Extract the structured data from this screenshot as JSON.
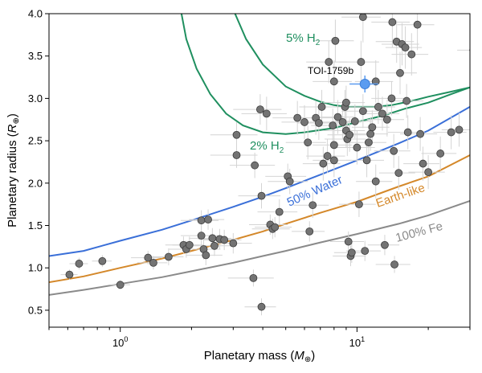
{
  "chart_data": {
    "type": "scatter",
    "xlabel_main": "Planetary mass (",
    "xlabel_sym": "M",
    "xlabel_sub": "⊕",
    "xlabel_close": ")",
    "ylabel_main": "Planetary radius (",
    "ylabel_sym": "R",
    "ylabel_sub": "⊕",
    "ylabel_close": ")",
    "x_scale": "log",
    "xlim": [
      0.5,
      30
    ],
    "ylim": [
      0.3,
      4.0
    ],
    "x_ticks": [
      {
        "value": 1,
        "base": "10",
        "exp": "0"
      },
      {
        "value": 10,
        "base": "10",
        "exp": "1"
      }
    ],
    "y_ticks": [
      {
        "value": 0.5,
        "label": "0.5"
      },
      {
        "value": 1.0,
        "label": "1.0"
      },
      {
        "value": 1.5,
        "label": "1.5"
      },
      {
        "value": 2.0,
        "label": "2.0"
      },
      {
        "value": 2.5,
        "label": "2.5"
      },
      {
        "value": 3.0,
        "label": "3.0"
      },
      {
        "value": 3.5,
        "label": "3.5"
      },
      {
        "value": 4.0,
        "label": "4.0"
      }
    ],
    "grid": false,
    "colors": {
      "planet": "#737373",
      "planet_edge": "#3c3c3c",
      "errorbar": "#d4d4d4",
      "target": "#5b9cf0",
      "h2": "#1f8f5f",
      "water": "#3a6fd8",
      "earth": "#d4882a",
      "iron": "#8a8a8a"
    },
    "models": [
      {
        "name": "5% H2",
        "label_main": "5% H",
        "label_sub": "2",
        "color": "#1f8f5f",
        "points": [
          [
            3.0,
            4.05
          ],
          [
            3.4,
            3.7
          ],
          [
            4.0,
            3.4
          ],
          [
            5.0,
            3.14
          ],
          [
            6.0,
            3.03
          ],
          [
            7.0,
            2.96
          ],
          [
            8.0,
            2.92
          ],
          [
            9.0,
            2.9
          ],
          [
            10.0,
            2.9
          ],
          [
            12.0,
            2.9
          ],
          [
            14.0,
            2.92
          ],
          [
            17.0,
            2.97
          ],
          [
            20.0,
            3.02
          ],
          [
            25.0,
            3.08
          ],
          [
            30.0,
            3.13
          ]
        ]
      },
      {
        "name": "2% H2",
        "label_main": "2% H",
        "label_sub": "2",
        "color": "#1f8f5f",
        "points": [
          [
            1.8,
            4.05
          ],
          [
            1.9,
            3.7
          ],
          [
            2.1,
            3.35
          ],
          [
            2.4,
            3.05
          ],
          [
            2.8,
            2.82
          ],
          [
            3.3,
            2.68
          ],
          [
            4.0,
            2.6
          ],
          [
            5.0,
            2.58
          ],
          [
            6.0,
            2.6
          ],
          [
            8.0,
            2.65
          ],
          [
            10.0,
            2.72
          ],
          [
            13.0,
            2.8
          ],
          [
            16.0,
            2.88
          ],
          [
            20.0,
            2.95
          ],
          [
            25.0,
            3.05
          ],
          [
            30.0,
            3.13
          ]
        ]
      },
      {
        "name": "50% Water",
        "label": "50% Water",
        "color": "#3a6fd8",
        "points": [
          [
            0.5,
            1.14
          ],
          [
            0.7,
            1.2
          ],
          [
            1.0,
            1.32
          ],
          [
            1.5,
            1.45
          ],
          [
            2.0,
            1.56
          ],
          [
            3.0,
            1.72
          ],
          [
            4.0,
            1.84
          ],
          [
            5.0,
            1.94
          ],
          [
            7.0,
            2.1
          ],
          [
            10.0,
            2.27
          ],
          [
            15.0,
            2.47
          ],
          [
            20.0,
            2.62
          ],
          [
            30.0,
            2.9
          ]
        ]
      },
      {
        "name": "Earth-like",
        "label": "Earth-like",
        "color": "#d4882a",
        "points": [
          [
            0.5,
            0.83
          ],
          [
            0.7,
            0.9
          ],
          [
            1.0,
            1.0
          ],
          [
            1.5,
            1.11
          ],
          [
            2.0,
            1.2
          ],
          [
            3.0,
            1.33
          ],
          [
            4.0,
            1.43
          ],
          [
            5.0,
            1.52
          ],
          [
            7.0,
            1.65
          ],
          [
            10.0,
            1.78
          ],
          [
            15.0,
            1.96
          ],
          [
            20.0,
            2.08
          ],
          [
            30.0,
            2.33
          ]
        ]
      },
      {
        "name": "100% Fe",
        "label": "100% Fe",
        "color": "#8a8a8a",
        "points": [
          [
            0.5,
            0.68
          ],
          [
            0.7,
            0.74
          ],
          [
            1.0,
            0.81
          ],
          [
            1.5,
            0.89
          ],
          [
            2.0,
            0.96
          ],
          [
            3.0,
            1.06
          ],
          [
            4.0,
            1.14
          ],
          [
            5.0,
            1.2
          ],
          [
            7.0,
            1.3
          ],
          [
            10.0,
            1.4
          ],
          [
            15.0,
            1.52
          ],
          [
            20.0,
            1.62
          ],
          [
            30.0,
            1.79
          ]
        ]
      }
    ],
    "target": {
      "name": "TOI-1759b",
      "mass": 10.8,
      "radius": 3.17,
      "mass_err": 1.5,
      "radius_err": 0.1
    },
    "planets": [
      [
        0.61,
        0.92,
        0.05,
        0.06
      ],
      [
        0.67,
        1.05,
        0.06,
        0.07
      ],
      [
        0.84,
        1.08,
        0.08,
        0.07
      ],
      [
        1.0,
        0.8,
        0.1,
        0.05
      ],
      [
        1.31,
        1.12,
        0.2,
        0.08
      ],
      [
        1.38,
        1.06,
        0.2,
        0.08
      ],
      [
        1.6,
        1.13,
        0.25,
        0.1
      ],
      [
        1.85,
        1.27,
        0.3,
        0.1
      ],
      [
        1.9,
        1.22,
        0.3,
        0.1
      ],
      [
        1.96,
        1.27,
        0.3,
        0.1
      ],
      [
        2.2,
        1.56,
        0.4,
        0.12
      ],
      [
        2.2,
        1.38,
        0.4,
        0.12
      ],
      [
        2.25,
        1.22,
        0.4,
        0.12
      ],
      [
        2.3,
        1.15,
        0.4,
        0.12
      ],
      [
        2.35,
        1.57,
        0.4,
        0.12
      ],
      [
        2.45,
        1.35,
        0.5,
        0.12
      ],
      [
        2.5,
        1.26,
        0.5,
        0.12
      ],
      [
        2.63,
        1.34,
        0.5,
        0.12
      ],
      [
        2.75,
        1.33,
        0.5,
        0.12
      ],
      [
        3.0,
        1.29,
        0.6,
        0.12
      ],
      [
        3.1,
        2.33,
        0.7,
        0.15
      ],
      [
        3.1,
        2.57,
        0.7,
        0.15
      ],
      [
        3.65,
        0.88,
        0.8,
        0.1
      ],
      [
        3.7,
        2.21,
        0.8,
        0.15
      ],
      [
        3.9,
        2.87,
        0.9,
        0.18
      ],
      [
        3.95,
        1.85,
        0.8,
        0.15
      ],
      [
        3.95,
        0.54,
        0.6,
        0.1
      ],
      [
        4.15,
        2.82,
        0.9,
        0.2
      ],
      [
        4.3,
        1.51,
        0.8,
        0.12
      ],
      [
        4.4,
        1.46,
        0.8,
        0.12
      ],
      [
        4.5,
        1.48,
        0.8,
        0.12
      ],
      [
        4.7,
        1.66,
        0.9,
        0.15
      ],
      [
        5.1,
        2.08,
        1.0,
        0.15
      ],
      [
        5.2,
        2.02,
        1.0,
        0.15
      ],
      [
        5.6,
        2.77,
        1.2,
        0.2
      ],
      [
        6.0,
        2.72,
        1.2,
        0.2
      ],
      [
        6.2,
        2.48,
        1.2,
        0.2
      ],
      [
        6.3,
        1.43,
        1.0,
        0.12
      ],
      [
        6.5,
        1.74,
        1.1,
        0.15
      ],
      [
        6.7,
        2.77,
        1.3,
        0.2
      ],
      [
        6.9,
        2.71,
        1.3,
        0.2
      ],
      [
        7.1,
        2.9,
        1.4,
        0.2
      ],
      [
        7.2,
        2.23,
        1.3,
        0.2
      ],
      [
        7.5,
        2.32,
        1.4,
        0.2
      ],
      [
        7.6,
        3.43,
        1.5,
        0.25
      ],
      [
        7.9,
        2.68,
        1.5,
        0.2
      ],
      [
        8.0,
        2.45,
        1.5,
        0.2
      ],
      [
        8.0,
        2.27,
        1.5,
        0.2
      ],
      [
        8.0,
        3.2,
        1.5,
        0.25
      ],
      [
        8.1,
        3.68,
        1.6,
        0.25
      ],
      [
        8.3,
        2.78,
        1.6,
        0.2
      ],
      [
        8.7,
        2.72,
        1.7,
        0.2
      ],
      [
        8.9,
        2.9,
        1.7,
        0.2
      ],
      [
        9.0,
        2.95,
        1.8,
        0.2
      ],
      [
        9.0,
        2.62,
        1.8,
        0.2
      ],
      [
        9.1,
        2.52,
        1.8,
        0.2
      ],
      [
        9.2,
        1.31,
        1.5,
        0.12
      ],
      [
        9.3,
        2.57,
        1.8,
        0.2
      ],
      [
        9.4,
        1.14,
        1.5,
        0.12
      ],
      [
        9.5,
        1.18,
        1.5,
        0.12
      ],
      [
        9.8,
        2.73,
        1.9,
        0.2
      ],
      [
        10.0,
        2.42,
        1.9,
        0.2
      ],
      [
        10.2,
        1.75,
        1.8,
        0.15
      ],
      [
        10.4,
        3.43,
        2.0,
        0.25
      ],
      [
        10.6,
        3.96,
        2.0,
        0.3
      ],
      [
        10.6,
        2.85,
        2.0,
        0.2
      ],
      [
        10.8,
        1.2,
        1.8,
        0.12
      ],
      [
        11.0,
        2.27,
        2.0,
        0.2
      ],
      [
        11.2,
        2.48,
        2.1,
        0.2
      ],
      [
        11.4,
        2.58,
        2.1,
        0.2
      ],
      [
        11.6,
        2.66,
        2.1,
        0.2
      ],
      [
        12.0,
        2.02,
        2.1,
        0.2
      ],
      [
        12.0,
        3.2,
        2.2,
        0.25
      ],
      [
        12.3,
        2.9,
        2.2,
        0.2
      ],
      [
        12.8,
        2.82,
        2.3,
        0.2
      ],
      [
        13.1,
        1.27,
        2.0,
        0.12
      ],
      [
        13.4,
        2.75,
        2.4,
        0.2
      ],
      [
        14.0,
        3.0,
        2.5,
        0.2
      ],
      [
        14.1,
        3.9,
        2.6,
        0.3
      ],
      [
        14.3,
        2.38,
        2.5,
        0.2
      ],
      [
        14.4,
        1.04,
        2.4,
        0.1
      ],
      [
        14.7,
        3.67,
        2.7,
        0.25
      ],
      [
        15.0,
        2.12,
        2.6,
        0.2
      ],
      [
        15.2,
        3.3,
        2.7,
        0.25
      ],
      [
        15.5,
        3.64,
        2.8,
        0.25
      ],
      [
        16.0,
        3.6,
        2.8,
        0.25
      ],
      [
        16.2,
        2.97,
        2.9,
        0.2
      ],
      [
        16.4,
        2.6,
        2.9,
        0.2
      ],
      [
        17.0,
        3.52,
        3.0,
        0.25
      ],
      [
        18.0,
        3.87,
        3.2,
        0.3
      ],
      [
        18.5,
        2.58,
        3.3,
        0.2
      ],
      [
        19.0,
        2.23,
        3.3,
        0.2
      ],
      [
        20.0,
        2.13,
        3.5,
        0.2
      ],
      [
        22.5,
        2.35,
        3.8,
        0.2
      ],
      [
        25.0,
        2.6,
        4.0,
        0.2
      ],
      [
        27.0,
        2.63,
        4.2,
        0.2
      ],
      [
        31.0,
        3.57,
        4.5,
        0.25
      ]
    ]
  }
}
